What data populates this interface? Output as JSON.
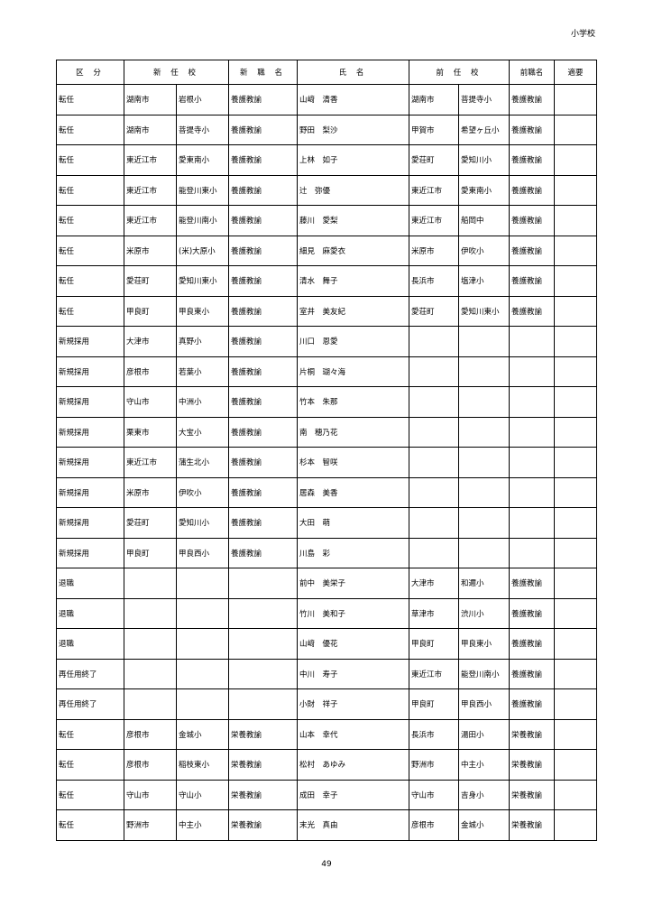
{
  "corner_label": "小学校",
  "page_number": "49",
  "table": {
    "headers": [
      {
        "label": "区 分",
        "span": 1
      },
      {
        "label": "新 任 校",
        "span": 2
      },
      {
        "label": "新 職 名",
        "span": 1
      },
      {
        "label": "氏 名",
        "span": 1
      },
      {
        "label": "前 任 校",
        "span": 2
      },
      {
        "label": "前職名",
        "span": 1
      },
      {
        "label": "適要",
        "span": 1
      }
    ],
    "rows": [
      [
        "転任",
        "湖南市",
        "岩根小",
        "養護教諭",
        "山﨑　清香",
        "湖南市",
        "菩提寺小",
        "養護教諭",
        ""
      ],
      [
        "転任",
        "湖南市",
        "菩提寺小",
        "養護教諭",
        "野田　梨沙",
        "甲賀市",
        "希望ヶ丘小",
        "養護教諭",
        ""
      ],
      [
        "転任",
        "東近江市",
        "愛東南小",
        "養護教諭",
        "上林　如子",
        "愛荘町",
        "愛知川小",
        "養護教諭",
        ""
      ],
      [
        "転任",
        "東近江市",
        "能登川東小",
        "養護教諭",
        "辻　弥優",
        "東近江市",
        "愛東南小",
        "養護教諭",
        ""
      ],
      [
        "転任",
        "東近江市",
        "能登川南小",
        "養護教諭",
        "藤川　愛梨",
        "東近江市",
        "船岡中",
        "養護教諭",
        ""
      ],
      [
        "転任",
        "米原市",
        "(米)大原小",
        "養護教諭",
        "細見　麻愛衣",
        "米原市",
        "伊吹小",
        "養護教諭",
        ""
      ],
      [
        "転任",
        "愛荘町",
        "愛知川東小",
        "養護教諭",
        "清水　舞子",
        "長浜市",
        "塩津小",
        "養護教諭",
        ""
      ],
      [
        "転任",
        "甲良町",
        "甲良東小",
        "養護教諭",
        "室井　美友紀",
        "愛荘町",
        "愛知川東小",
        "養護教諭",
        ""
      ],
      [
        "新規採用",
        "大津市",
        "真野小",
        "養護教諭",
        "川口　恩愛",
        "",
        "",
        "",
        ""
      ],
      [
        "新規採用",
        "彦根市",
        "若葉小",
        "養護教諭",
        "片桐　瑚々海",
        "",
        "",
        "",
        ""
      ],
      [
        "新規採用",
        "守山市",
        "中洲小",
        "養護教諭",
        "竹本　朱那",
        "",
        "",
        "",
        ""
      ],
      [
        "新規採用",
        "栗東市",
        "大宝小",
        "養護教諭",
        "南　穂乃花",
        "",
        "",
        "",
        ""
      ],
      [
        "新規採用",
        "東近江市",
        "蒲生北小",
        "養護教諭",
        "杉本　智咲",
        "",
        "",
        "",
        ""
      ],
      [
        "新規採用",
        "米原市",
        "伊吹小",
        "養護教諭",
        "居森　美香",
        "",
        "",
        "",
        ""
      ],
      [
        "新規採用",
        "愛荘町",
        "愛知川小",
        "養護教諭",
        "大田　萌",
        "",
        "",
        "",
        ""
      ],
      [
        "新規採用",
        "甲良町",
        "甲良西小",
        "養護教諭",
        "川島　彩",
        "",
        "",
        "",
        ""
      ],
      [
        "退職",
        "",
        "",
        "",
        "前中　美栄子",
        "大津市",
        "和邇小",
        "養護教諭",
        ""
      ],
      [
        "退職",
        "",
        "",
        "",
        "竹川　美和子",
        "草津市",
        "渋川小",
        "養護教諭",
        ""
      ],
      [
        "退職",
        "",
        "",
        "",
        "山﨑　優花",
        "甲良町",
        "甲良東小",
        "養護教諭",
        ""
      ],
      [
        "再任用終了",
        "",
        "",
        "",
        "中川　寿子",
        "東近江市",
        "能登川南小",
        "養護教諭",
        ""
      ],
      [
        "再任用終了",
        "",
        "",
        "",
        "小財　祥子",
        "甲良町",
        "甲良西小",
        "養護教諭",
        ""
      ],
      [
        "転任",
        "彦根市",
        "金城小",
        "栄養教諭",
        "山本　幸代",
        "長浜市",
        "湯田小",
        "栄養教諭",
        ""
      ],
      [
        "転任",
        "彦根市",
        "稲枝東小",
        "栄養教諭",
        "松村　あゆみ",
        "野洲市",
        "中主小",
        "栄養教諭",
        ""
      ],
      [
        "転任",
        "守山市",
        "守山小",
        "栄養教諭",
        "成田　幸子",
        "守山市",
        "吉身小",
        "栄養教諭",
        ""
      ],
      [
        "転任",
        "野洲市",
        "中主小",
        "栄養教諭",
        "末光　真由",
        "彦根市",
        "金城小",
        "栄養教諭",
        ""
      ]
    ]
  }
}
